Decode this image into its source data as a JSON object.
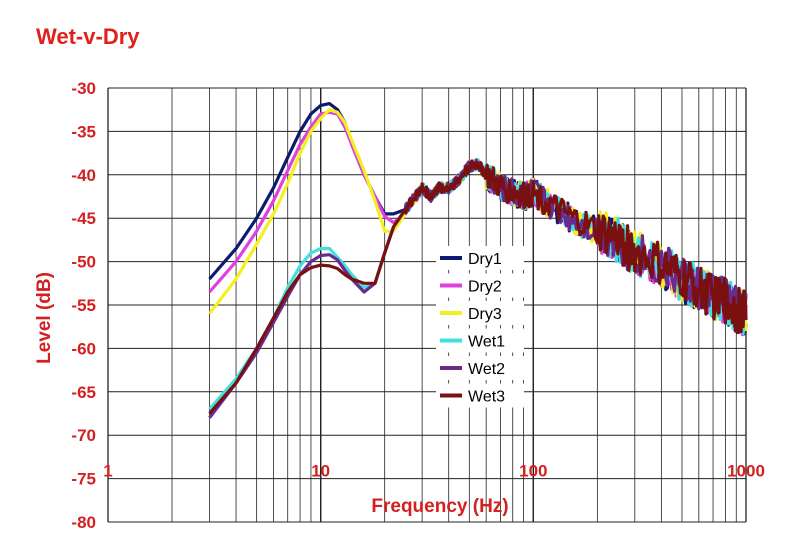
{
  "chart_data": {
    "type": "line",
    "title": "Wet-v-Dry",
    "xlabel": "Frequency (Hz)",
    "ylabel": "Level (dB)",
    "x_scale": "log",
    "xlim": [
      1,
      1000
    ],
    "ylim": [
      -80,
      -30
    ],
    "x_tick_labels": [
      "1",
      "10",
      "100",
      "1000"
    ],
    "x_ticks": [
      1,
      10,
      100,
      1000
    ],
    "y_ticks": [
      -30,
      -35,
      -40,
      -45,
      -50,
      -55,
      -60,
      -65,
      -70,
      -75,
      -80
    ],
    "grid": true,
    "legend_position": "center",
    "series": [
      {
        "name": "Dry1",
        "color": "#0d1a6e",
        "x": [
          3,
          4,
          5,
          6,
          7,
          8,
          9,
          10,
          11,
          12,
          13,
          14,
          16,
          18,
          20,
          22,
          25
        ],
        "y": [
          -52,
          -48.5,
          -45,
          -41.5,
          -38,
          -35,
          -33,
          -32,
          -31.8,
          -32.5,
          -34,
          -36.5,
          -40,
          -42.5,
          -44.5,
          -44.5,
          -44
        ]
      },
      {
        "name": "Dry2",
        "color": "#e040e0",
        "x": [
          3,
          4,
          5,
          6,
          7,
          8,
          9,
          10,
          11,
          12,
          13,
          14,
          16,
          18,
          20,
          22,
          25
        ],
        "y": [
          -53.5,
          -50,
          -46.5,
          -43,
          -39.5,
          -36.5,
          -34.5,
          -33,
          -32.8,
          -33,
          -34.5,
          -36.5,
          -40,
          -42.5,
          -44.8,
          -45.5,
          -44.5
        ]
      },
      {
        "name": "Dry3",
        "color": "#f4f020",
        "x": [
          3,
          4,
          5,
          6,
          7,
          8,
          9,
          10,
          11,
          12,
          13,
          14,
          16,
          18,
          20,
          22,
          25
        ],
        "y": [
          -56,
          -52,
          -48,
          -44.5,
          -41,
          -37.5,
          -35,
          -33.5,
          -32.5,
          -32.8,
          -34,
          -36,
          -39.5,
          -43,
          -46.5,
          -46.5,
          -44.5
        ]
      },
      {
        "name": "Wet1",
        "color": "#40e0e0",
        "x": [
          3,
          4,
          5,
          6,
          7,
          8,
          9,
          10,
          11,
          12,
          13,
          14,
          16,
          18,
          20,
          22,
          25
        ],
        "y": [
          -67,
          -63.5,
          -60,
          -56.5,
          -53,
          -50.5,
          -49,
          -48.5,
          -48.5,
          -49.5,
          -50.5,
          -51.5,
          -53,
          -52.5,
          -49,
          -46,
          -44
        ]
      },
      {
        "name": "Wet2",
        "color": "#6a2a8e",
        "x": [
          3,
          4,
          5,
          6,
          7,
          8,
          9,
          10,
          11,
          12,
          13,
          14,
          16,
          18,
          20,
          22,
          25
        ],
        "y": [
          -68,
          -64,
          -60.5,
          -57,
          -54,
          -51.5,
          -50,
          -49.3,
          -49.2,
          -49.8,
          -51,
          -52,
          -53.5,
          -52.5,
          -49,
          -46,
          -44
        ]
      },
      {
        "name": "Wet3",
        "color": "#7a1010",
        "x": [
          3,
          4,
          5,
          6,
          7,
          8,
          9,
          10,
          11,
          12,
          13,
          14,
          16,
          18,
          20,
          22,
          25
        ],
        "y": [
          -67.5,
          -64,
          -60,
          -56.5,
          -53.5,
          -51.5,
          -50.7,
          -50.4,
          -50.5,
          -50.8,
          -51.5,
          -52,
          -52.5,
          -52.5,
          -49,
          -46,
          -44
        ]
      }
    ],
    "shared_tail": {
      "note_free_data": true,
      "x": [
        25,
        28,
        30,
        33,
        36,
        40,
        45,
        50,
        55,
        60,
        70,
        80,
        90,
        100,
        120,
        150,
        200,
        250,
        300,
        400,
        500,
        600,
        700,
        800,
        900,
        1000
      ],
      "y": [
        -44,
        -42.5,
        -41.5,
        -42.5,
        -41.5,
        -41.5,
        -40.5,
        -39,
        -38.8,
        -40,
        -41.5,
        -42,
        -42.5,
        -42,
        -43.5,
        -45,
        -46.5,
        -47.5,
        -49,
        -50.5,
        -52,
        -53,
        -54,
        -54.5,
        -55.5,
        -56
      ]
    }
  }
}
